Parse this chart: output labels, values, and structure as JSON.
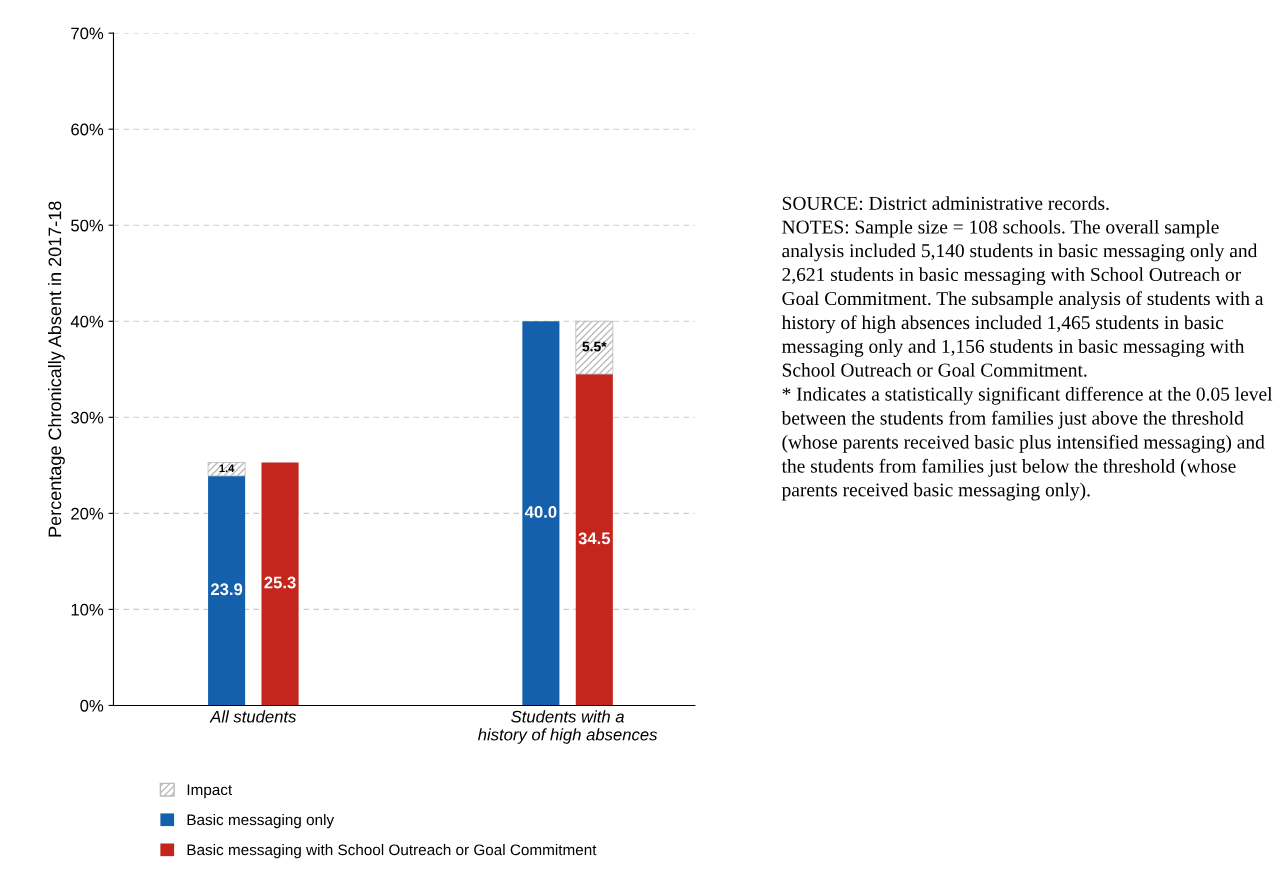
{
  "chart_data": {
    "type": "bar",
    "ylabel": "Percentage Chronically Absent in 2017-18",
    "categories": [
      "All students",
      "Students with a\nhistory of high absences"
    ],
    "series": [
      {
        "name": "Impact",
        "color": "#bbbbbb",
        "values": [
          1.4,
          5.5
        ],
        "base": [
          23.9,
          34.5
        ],
        "value_labels": [
          "1.4",
          "5.5*"
        ]
      },
      {
        "name": "Basic messaging only",
        "color": "#1560ad",
        "values": [
          23.9,
          40.0
        ],
        "value_labels": [
          "23.9",
          "40.0"
        ]
      },
      {
        "name": "Basic messaging with School Outreach or Goal Commitment",
        "color": "#c4251c",
        "values": [
          25.3,
          34.5
        ],
        "value_labels": [
          "25.3",
          "34.5"
        ]
      }
    ],
    "ylim": [
      0,
      70
    ],
    "yticks": [
      {
        "value": 0,
        "label": "0%"
      },
      {
        "value": 10,
        "label": "10%"
      },
      {
        "value": 20,
        "label": "20%"
      },
      {
        "value": 30,
        "label": "30%"
      },
      {
        "value": 40,
        "label": "40%"
      },
      {
        "value": 50,
        "label": "50%"
      },
      {
        "value": 60,
        "label": "60%"
      },
      {
        "value": 70,
        "label": "70%"
      }
    ],
    "grid": "y",
    "legend": "bottom left",
    "annotations": [
      "SOURCE: District administrative records.",
      "NOTES: Sample size = 108 schools. The overall sample analysis included 5,140 students in basic messaging only and 2,621 students in basic messaging with School Outreach or Goal Commitment. The subsample analysis of students with a history of high absences included 1,465 students in basic messaging only and 1,156 students in basic messaging with School Outreach or Goal Commitment.",
      "* Indicates a statistically significant difference at the 0.05 level between the students from families just above the threshold (whose parents received basic plus intensified messaging) and the students from families just below the threshold (whose parents received basic messaging only)."
    ]
  }
}
